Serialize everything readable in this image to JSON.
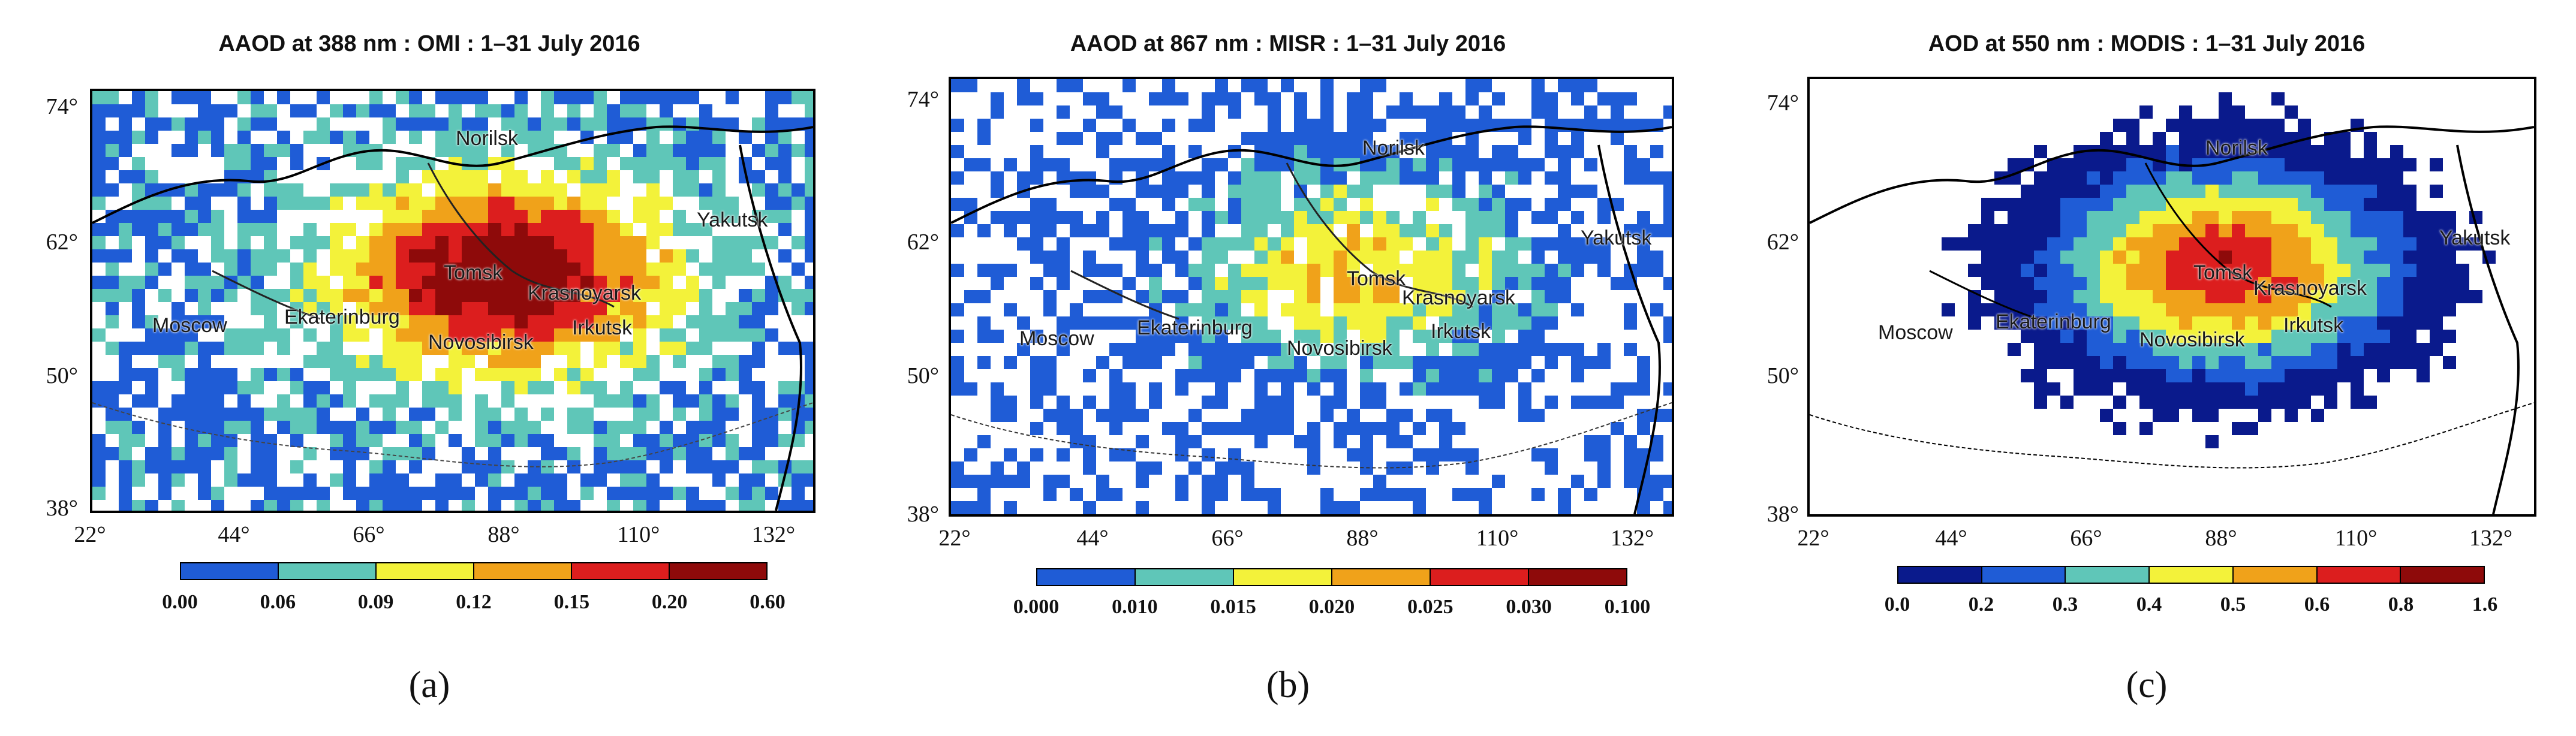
{
  "panels": [
    {
      "title": "AAOD at 388 nm : OMI : 1–31 July 2016",
      "label": "(a)",
      "bg": "#ffffff",
      "colorbar": {
        "colors": [
          "#1f5cd6",
          "#5fc6b8",
          "#f3f23a",
          "#f0a21a",
          "#dc1e1e",
          "#8e0a0a"
        ],
        "ticks": [
          "0.00",
          "0.06",
          "0.09",
          "0.12",
          "0.15",
          "0.20",
          "0.60"
        ]
      }
    },
    {
      "title": "AAOD at 867 nm : MISR : 1–31 July 2016",
      "label": "(b)",
      "bg": "#1f5cd6",
      "colorbar": {
        "colors": [
          "#1f5cd6",
          "#5fc6b8",
          "#f3f23a",
          "#f0a21a",
          "#dc1e1e",
          "#8e0a0a"
        ],
        "ticks": [
          "0.000",
          "0.010",
          "0.015",
          "0.020",
          "0.025",
          "0.030",
          "0.100"
        ]
      }
    },
    {
      "title": "AOD at 550 nm : MODIS : 1–31 July 2016",
      "label": "(c)",
      "bg": "#0a1a8c",
      "colorbar": {
        "colors": [
          "#0a1a8c",
          "#1f5cd6",
          "#5fc6b8",
          "#f3f23a",
          "#f0a21a",
          "#dc1e1e",
          "#8e0a0a"
        ],
        "ticks": [
          "0.0",
          "0.2",
          "0.3",
          "0.4",
          "0.5",
          "0.6",
          "0.8",
          "1.6"
        ]
      }
    }
  ],
  "lat_labels": [
    "74°",
    "62°",
    "50°",
    "38°"
  ],
  "lon_labels": [
    "22°",
    "44°",
    "66°",
    "88°",
    "110°",
    "132°"
  ],
  "cities": {
    "norilsk": "Norilsk",
    "yakutsk": "Yakutsk",
    "tomsk": "Tomsk",
    "krasnoyarsk": "Krasnoyarsk",
    "moscow": "Moscow",
    "ekaterinburg": "Ekaterinburg",
    "novosibirsk": "Novosibirsk",
    "irkutsk": "Irkutsk"
  }
}
